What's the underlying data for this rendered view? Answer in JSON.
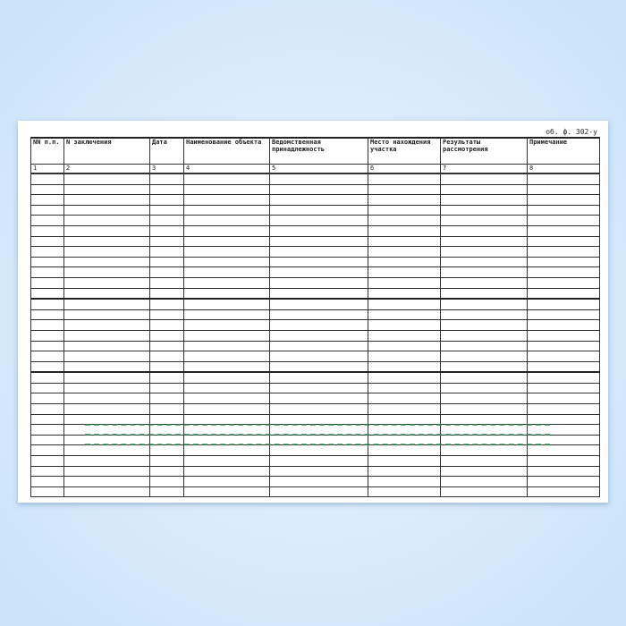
{
  "form_code": "об. ф. 302-у",
  "columns": [
    {
      "header": "NN п.п.",
      "number": "1"
    },
    {
      "header": "N заключения",
      "number": "2"
    },
    {
      "header": "Дата",
      "number": "3"
    },
    {
      "header": "Наименование объекта",
      "number": "4"
    },
    {
      "header": "Ведомственная принадлежность",
      "number": "5"
    },
    {
      "header": "Место нахождения участка",
      "number": "6"
    },
    {
      "header": "Результаты рассмотрения",
      "number": "7"
    },
    {
      "header": "Примечание",
      "number": "8"
    }
  ],
  "watermark_color": "#2a8a4a"
}
